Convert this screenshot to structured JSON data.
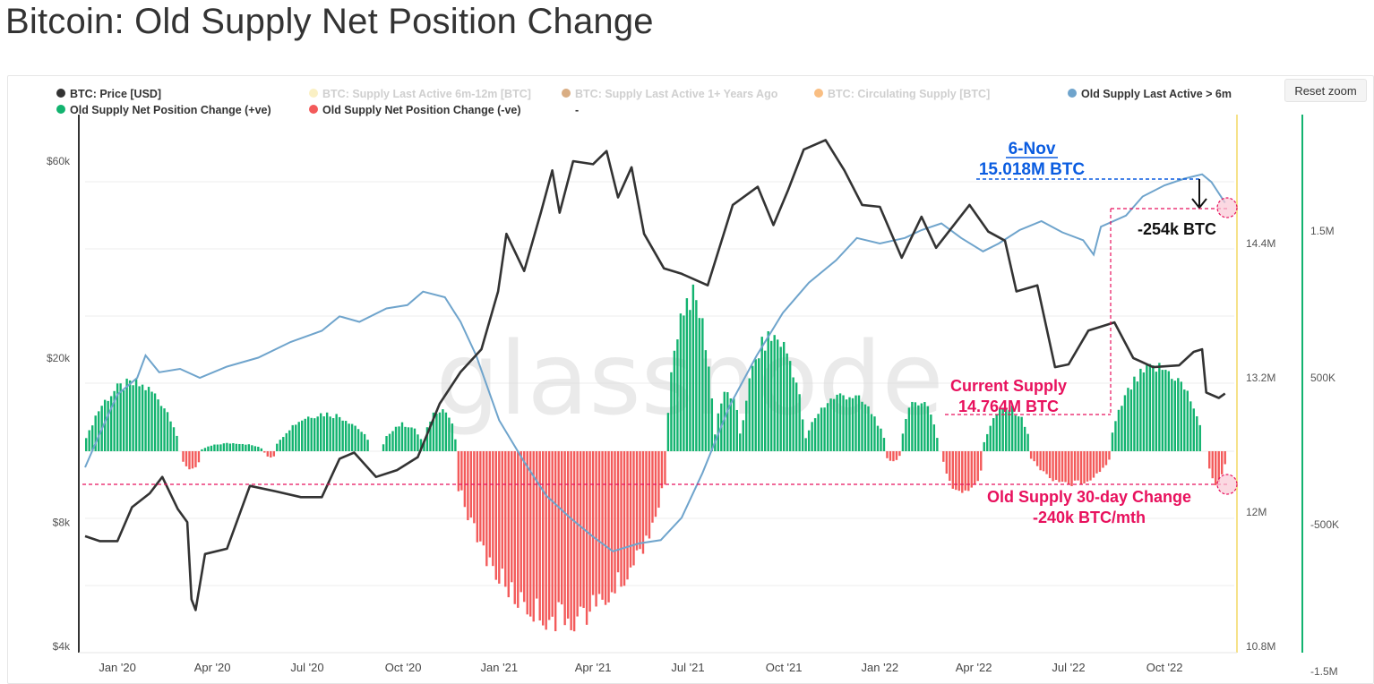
{
  "title": "Bitcoin: Old Supply Net Position Change",
  "reset_zoom_label": "Reset zoom",
  "watermark": "glassnode",
  "colors": {
    "price": "#333333",
    "old_supply": "#6fa4cc",
    "positive": "#12b36f",
    "negative": "#f35a5a",
    "annotation_pink": "#e8115d",
    "annotation_blue": "#0a5ce0",
    "legend_faded_yellow": "#f6e28a",
    "legend_faded_brown": "#c98a4e",
    "legend_faded_orange": "#f7a24d"
  },
  "legend": [
    {
      "label": "BTC: Price [USD]",
      "color": "#333333",
      "faded": false
    },
    {
      "label": "BTC: Supply Last Active 6m-12m [BTC]",
      "color": "#f6e28a",
      "faded": true
    },
    {
      "label": "BTC: Supply Last Active 1+ Years Ago",
      "color": "#c98a4e",
      "faded": true
    },
    {
      "label": "BTC: Circulating Supply [BTC]",
      "color": "#f7a24d",
      "faded": true
    },
    {
      "label": "Old Supply Last Active > 6m",
      "color": "#6fa4cc",
      "faded": false
    },
    {
      "label": "Old Supply Net Position Change (+ve)",
      "color": "#12b36f",
      "faded": false
    },
    {
      "label": "Old Supply Net Position Change (-ve)",
      "color": "#f35a5a",
      "faded": false
    },
    {
      "label": "-",
      "color": null,
      "faded": false
    }
  ],
  "annotations": {
    "peak_date": "6-Nov",
    "peak_value": "15.018M BTC",
    "drop": "-254k BTC",
    "current_supply_line1": "Current Supply",
    "current_supply_line2": "14.764M BTC",
    "change_line1": "Old Supply 30-day Change",
    "change_line2": "-240k BTC/mth"
  },
  "chart_data": {
    "type": "line",
    "x_ticks": [
      "Jan '20",
      "Apr '20",
      "Jul '20",
      "Oct '20",
      "Jan '21",
      "Apr '21",
      "Jul '21",
      "Oct '21",
      "Jan '22",
      "Apr '22",
      "Jul '22",
      "Oct '22"
    ],
    "x_range": [
      "2019-12-01",
      "2022-11-30"
    ],
    "y_axes": {
      "price": {
        "scale": "log",
        "ticks": [
          "$4k",
          "$8k",
          "$20k",
          "$60k"
        ],
        "range": [
          4000,
          80000
        ]
      },
      "supply": {
        "scale": "linear",
        "ticks": [
          "10.8M",
          "12M",
          "13.2M",
          "14.4M"
        ],
        "range": [
          10.8,
          15.6
        ]
      },
      "net_change": {
        "scale": "linear",
        "ticks": [
          "-1.5M",
          "-500K",
          "500K",
          "1.5M"
        ]
      }
    },
    "series": [
      {
        "name": "BTC: Price [USD]",
        "axis": "price",
        "points": [
          [
            "2019-12-01",
            7400
          ],
          [
            "2019-12-15",
            7200
          ],
          [
            "2020-01-01",
            7200
          ],
          [
            "2020-01-15",
            8700
          ],
          [
            "2020-02-01",
            9400
          ],
          [
            "2020-02-13",
            10300
          ],
          [
            "2020-02-28",
            8600
          ],
          [
            "2020-03-08",
            8000
          ],
          [
            "2020-03-12",
            5200
          ],
          [
            "2020-03-16",
            4900
          ],
          [
            "2020-03-25",
            6700
          ],
          [
            "2020-04-15",
            6900
          ],
          [
            "2020-05-07",
            9800
          ],
          [
            "2020-06-01",
            9500
          ],
          [
            "2020-06-25",
            9200
          ],
          [
            "2020-07-15",
            9200
          ],
          [
            "2020-08-01",
            11400
          ],
          [
            "2020-08-15",
            11800
          ],
          [
            "2020-09-05",
            10300
          ],
          [
            "2020-09-25",
            10700
          ],
          [
            "2020-10-15",
            11500
          ],
          [
            "2020-11-05",
            15500
          ],
          [
            "2020-11-25",
            18500
          ],
          [
            "2020-12-15",
            21000
          ],
          [
            "2020-12-31",
            29000
          ],
          [
            "2021-01-08",
            40000
          ],
          [
            "2021-01-25",
            32500
          ],
          [
            "2021-02-10",
            45000
          ],
          [
            "2021-02-21",
            57000
          ],
          [
            "2021-02-28",
            45000
          ],
          [
            "2021-03-13",
            60000
          ],
          [
            "2021-04-01",
            59000
          ],
          [
            "2021-04-14",
            63500
          ],
          [
            "2021-04-25",
            49000
          ],
          [
            "2021-05-08",
            58000
          ],
          [
            "2021-05-20",
            40000
          ],
          [
            "2021-06-08",
            33000
          ],
          [
            "2021-06-25",
            32000
          ],
          [
            "2021-07-20",
            30000
          ],
          [
            "2021-08-13",
            47000
          ],
          [
            "2021-09-06",
            52000
          ],
          [
            "2021-09-21",
            42000
          ],
          [
            "2021-10-05",
            51000
          ],
          [
            "2021-10-20",
            64000
          ],
          [
            "2021-11-10",
            67500
          ],
          [
            "2021-11-28",
            57000
          ],
          [
            "2021-12-15",
            47000
          ],
          [
            "2022-01-01",
            46500
          ],
          [
            "2022-01-22",
            35000
          ],
          [
            "2022-02-10",
            44000
          ],
          [
            "2022-02-24",
            37000
          ],
          [
            "2022-03-28",
            47000
          ],
          [
            "2022-04-15",
            40500
          ],
          [
            "2022-05-01",
            38500
          ],
          [
            "2022-05-12",
            29000
          ],
          [
            "2022-06-01",
            30000
          ],
          [
            "2022-06-18",
            19000
          ],
          [
            "2022-07-01",
            19300
          ],
          [
            "2022-07-20",
            23300
          ],
          [
            "2022-08-14",
            24400
          ],
          [
            "2022-09-01",
            20000
          ],
          [
            "2022-09-20",
            19000
          ],
          [
            "2022-10-15",
            19200
          ],
          [
            "2022-10-29",
            20700
          ],
          [
            "2022-11-06",
            21000
          ],
          [
            "2022-11-10",
            16500
          ],
          [
            "2022-11-22",
            16000
          ],
          [
            "2022-11-28",
            16400
          ]
        ]
      },
      {
        "name": "Old Supply Last Active > 6m",
        "axis": "supply",
        "points": [
          [
            "2019-12-01",
            12.4
          ],
          [
            "2019-12-15",
            12.7
          ],
          [
            "2020-01-01",
            13.05
          ],
          [
            "2020-01-20",
            13.2
          ],
          [
            "2020-01-28",
            13.4
          ],
          [
            "2020-02-10",
            13.25
          ],
          [
            "2020-03-01",
            13.28
          ],
          [
            "2020-03-20",
            13.2
          ],
          [
            "2020-04-15",
            13.3
          ],
          [
            "2020-05-15",
            13.38
          ],
          [
            "2020-06-15",
            13.52
          ],
          [
            "2020-07-15",
            13.62
          ],
          [
            "2020-08-01",
            13.75
          ],
          [
            "2020-08-20",
            13.7
          ],
          [
            "2020-09-15",
            13.82
          ],
          [
            "2020-10-05",
            13.85
          ],
          [
            "2020-10-20",
            13.97
          ],
          [
            "2020-11-10",
            13.92
          ],
          [
            "2020-11-25",
            13.7
          ],
          [
            "2020-12-10",
            13.4
          ],
          [
            "2021-01-01",
            12.82
          ],
          [
            "2021-01-25",
            12.45
          ],
          [
            "2021-02-15",
            12.15
          ],
          [
            "2021-03-10",
            11.95
          ],
          [
            "2021-04-01",
            11.78
          ],
          [
            "2021-04-20",
            11.65
          ],
          [
            "2021-05-15",
            11.72
          ],
          [
            "2021-06-05",
            11.75
          ],
          [
            "2021-06-25",
            11.95
          ],
          [
            "2021-07-15",
            12.35
          ],
          [
            "2021-08-10",
            12.95
          ],
          [
            "2021-09-05",
            13.4
          ],
          [
            "2021-09-30",
            13.78
          ],
          [
            "2021-10-25",
            14.05
          ],
          [
            "2021-11-20",
            14.25
          ],
          [
            "2021-12-10",
            14.45
          ],
          [
            "2022-01-01",
            14.4
          ],
          [
            "2022-01-25",
            14.45
          ],
          [
            "2022-02-10",
            14.52
          ],
          [
            "2022-03-01",
            14.58
          ],
          [
            "2022-03-20",
            14.45
          ],
          [
            "2022-04-10",
            14.33
          ],
          [
            "2022-04-25",
            14.4
          ],
          [
            "2022-05-15",
            14.52
          ],
          [
            "2022-06-05",
            14.6
          ],
          [
            "2022-06-25",
            14.5
          ],
          [
            "2022-07-15",
            14.43
          ],
          [
            "2022-07-25",
            14.3
          ],
          [
            "2022-08-01",
            14.55
          ],
          [
            "2022-08-25",
            14.65
          ],
          [
            "2022-09-10",
            14.82
          ],
          [
            "2022-10-01",
            14.92
          ],
          [
            "2022-10-20",
            14.98
          ],
          [
            "2022-11-06",
            15.018
          ],
          [
            "2022-11-15",
            14.95
          ],
          [
            "2022-11-28",
            14.764
          ]
        ]
      },
      {
        "name": "Old Supply Net Position Change (+ve)",
        "axis": "net_change",
        "bands": [
          [
            "2019-12-01",
            "2020-02-28",
            500
          ],
          [
            "2020-03-20",
            "2020-05-20",
            60
          ],
          [
            "2020-06-01",
            "2020-08-30",
            280
          ],
          [
            "2020-09-10",
            "2020-10-20",
            200
          ],
          [
            "2020-10-20",
            "2020-11-20",
            320
          ],
          [
            "2021-06-10",
            "2021-07-25",
            1150
          ],
          [
            "2021-07-25",
            "2021-08-20",
            430
          ],
          [
            "2021-08-20",
            "2021-10-20",
            850
          ],
          [
            "2021-10-20",
            "2022-01-05",
            420
          ],
          [
            "2022-01-20",
            "2022-02-25",
            380
          ],
          [
            "2022-04-10",
            "2022-05-25",
            320
          ],
          [
            "2022-08-10",
            "2022-11-06",
            620
          ]
        ]
      },
      {
        "name": "Old Supply Net Position Change (-ve)",
        "axis": "net_change",
        "bands": [
          [
            "2020-03-01",
            "2020-03-20",
            -140
          ],
          [
            "2020-05-20",
            "2020-06-01",
            -50
          ],
          [
            "2020-11-20",
            "2021-06-10",
            -1250
          ],
          [
            "2022-01-05",
            "2022-01-20",
            -80
          ],
          [
            "2022-03-01",
            "2022-04-10",
            -320
          ],
          [
            "2022-05-25",
            "2022-08-10",
            -240
          ],
          [
            "2022-11-10",
            "2022-11-28",
            -240
          ]
        ]
      }
    ]
  }
}
